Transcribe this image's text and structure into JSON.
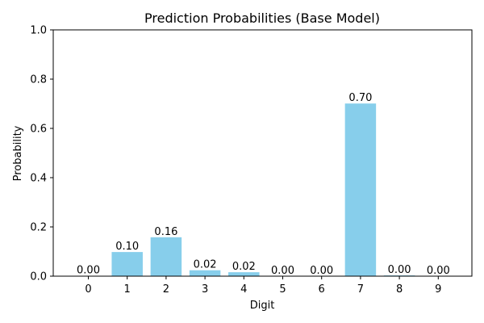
{
  "chart_data": {
    "type": "bar",
    "title": "Prediction Probabilities (Base Model)",
    "xlabel": "Digit",
    "ylabel": "Probability",
    "categories": [
      "0",
      "1",
      "2",
      "3",
      "4",
      "5",
      "6",
      "7",
      "8",
      "9"
    ],
    "values": [
      0.001,
      0.098,
      0.158,
      0.024,
      0.016,
      0.0,
      0.0,
      0.701,
      0.003,
      0.0
    ],
    "data_labels": [
      "0.00",
      "0.10",
      "0.16",
      "0.02",
      "0.02",
      "0.00",
      "0.00",
      "0.70",
      "0.00",
      "0.00"
    ],
    "ylim": [
      0,
      1
    ],
    "yticks": [
      0.0,
      0.2,
      0.4,
      0.6,
      0.8,
      1.0
    ],
    "ytick_labels": [
      "0.0",
      "0.2",
      "0.4",
      "0.6",
      "0.8",
      "1.0"
    ],
    "bar_color": "#87CEEB",
    "grid": false,
    "legend": "none"
  }
}
